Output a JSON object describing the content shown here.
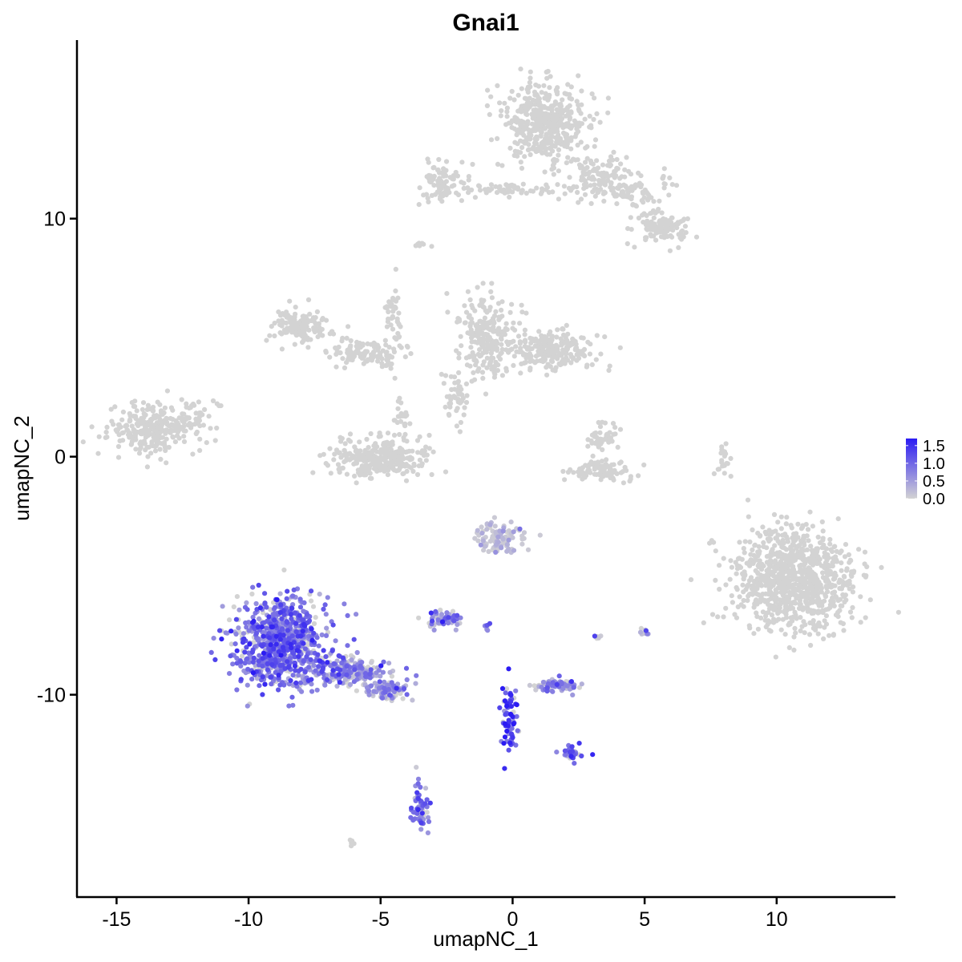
{
  "chart_data": {
    "type": "scatter",
    "title": "Gnai1",
    "xlabel": "umapNC_1",
    "ylabel": "umapNC_2",
    "xlim": [
      -16.5,
      14.5
    ],
    "ylim": [
      -18.5,
      17.5
    ],
    "x_ticks": [
      -15,
      -10,
      -5,
      0,
      5,
      10
    ],
    "x_tick_labels": [
      "-15",
      "-10",
      "-5",
      "0",
      "5",
      "10"
    ],
    "y_ticks": [
      -10,
      0,
      10
    ],
    "y_tick_labels": [
      "-10",
      "0",
      "10"
    ],
    "grid": false,
    "legend": {
      "placement": "right",
      "range": [
        0,
        1.7
      ],
      "ticks": [
        0.0,
        0.5,
        1.0,
        1.5
      ],
      "tick_labels": [
        "0.0",
        "0.5",
        "1.0",
        "1.5"
      ],
      "low_color": "#d3d3d3",
      "high_color": "#2b1bf3"
    },
    "colors": {
      "low": "#d3d3d3",
      "high": "#2b1bf3"
    },
    "clusters": [
      {
        "cx": 1.2,
        "cy": 14.0,
        "rx": 1.5,
        "ry": 1.5,
        "n": 450,
        "expr": 0
      },
      {
        "cx": 3.2,
        "cy": 11.8,
        "rx": 1.0,
        "ry": 0.8,
        "n": 110,
        "expr": 0
      },
      {
        "cx": 5.6,
        "cy": 9.6,
        "rx": 1.0,
        "ry": 0.6,
        "n": 110,
        "expr": 0
      },
      {
        "cx": -2.6,
        "cy": 11.5,
        "rx": 0.8,
        "ry": 0.7,
        "n": 90,
        "expr": 0
      },
      {
        "cx": -0.3,
        "cy": 11.2,
        "rx": 1.6,
        "ry": 0.3,
        "n": 60,
        "expr": 0
      },
      {
        "cx": 4.5,
        "cy": 11.2,
        "rx": 1.5,
        "ry": 0.8,
        "n": 90,
        "expr": 0
      },
      {
        "cx": -8.0,
        "cy": 5.5,
        "rx": 1.0,
        "ry": 0.7,
        "n": 130,
        "expr": 0
      },
      {
        "cx": -5.5,
        "cy": 4.3,
        "rx": 1.3,
        "ry": 0.5,
        "n": 120,
        "expr": 0
      },
      {
        "cx": -4.5,
        "cy": 6.0,
        "rx": 0.3,
        "ry": 1.2,
        "n": 40,
        "expr": 0
      },
      {
        "cx": -5.0,
        "cy": -0.1,
        "rx": 1.7,
        "ry": 0.8,
        "n": 300,
        "expr": 0
      },
      {
        "cx": -4.2,
        "cy": 1.5,
        "rx": 0.3,
        "ry": 1.0,
        "n": 25,
        "expr": 0
      },
      {
        "cx": -1.0,
        "cy": 5.0,
        "rx": 1.0,
        "ry": 1.5,
        "n": 240,
        "expr": 0
      },
      {
        "cx": 1.5,
        "cy": 4.5,
        "rx": 1.5,
        "ry": 0.8,
        "n": 230,
        "expr": 0
      },
      {
        "cx": -2.1,
        "cy": 2.5,
        "rx": 0.4,
        "ry": 1.0,
        "n": 50,
        "expr": 0
      },
      {
        "cx": -13.6,
        "cy": 1.1,
        "rx": 1.4,
        "ry": 0.9,
        "n": 260,
        "expr": 0
      },
      {
        "cx": -11.9,
        "cy": 1.6,
        "rx": 0.7,
        "ry": 0.8,
        "n": 40,
        "expr": 0
      },
      {
        "cx": 3.3,
        "cy": -0.6,
        "rx": 1.1,
        "ry": 0.4,
        "n": 100,
        "expr": 0
      },
      {
        "cx": 3.4,
        "cy": 0.8,
        "rx": 0.5,
        "ry": 0.6,
        "n": 45,
        "expr": 0
      },
      {
        "cx": 10.7,
        "cy": -5.2,
        "rx": 2.1,
        "ry": 1.9,
        "n": 900,
        "expr": 0
      },
      {
        "cx": -0.5,
        "cy": -3.4,
        "rx": 0.9,
        "ry": 0.6,
        "n": 100,
        "expr": 0.05
      },
      {
        "cx": -8.8,
        "cy": -7.8,
        "rx": 1.5,
        "ry": 1.8,
        "n": 800,
        "expr": 0.55
      },
      {
        "cx": -6.2,
        "cy": -9.0,
        "rx": 1.4,
        "ry": 0.55,
        "n": 220,
        "expr": 0.35
      },
      {
        "cx": -4.7,
        "cy": -9.8,
        "rx": 0.7,
        "ry": 0.4,
        "n": 90,
        "expr": 0.3
      },
      {
        "cx": -2.6,
        "cy": -6.8,
        "rx": 0.6,
        "ry": 0.3,
        "n": 60,
        "expr": 0.45
      },
      {
        "cx": 1.7,
        "cy": -9.6,
        "rx": 0.8,
        "ry": 0.25,
        "n": 80,
        "expr": 0.35
      },
      {
        "cx": -0.1,
        "cy": -11.0,
        "rx": 0.3,
        "ry": 1.3,
        "n": 70,
        "expr": 0.75
      },
      {
        "cx": 2.2,
        "cy": -12.5,
        "rx": 0.4,
        "ry": 0.3,
        "n": 30,
        "expr": 0.6
      },
      {
        "cx": -3.5,
        "cy": -14.8,
        "rx": 0.3,
        "ry": 0.8,
        "n": 60,
        "expr": 0.5
      },
      {
        "cx": 5.0,
        "cy": -7.4,
        "rx": 0.2,
        "ry": 0.3,
        "n": 10,
        "expr": 0.25
      },
      {
        "cx": 3.2,
        "cy": -7.7,
        "rx": 0.2,
        "ry": 0.2,
        "n": 6,
        "expr": 0.3
      },
      {
        "cx": -1.0,
        "cy": -7.2,
        "rx": 0.2,
        "ry": 0.2,
        "n": 6,
        "expr": 0.5
      },
      {
        "cx": 8.0,
        "cy": -0.2,
        "rx": 0.2,
        "ry": 0.8,
        "n": 20,
        "expr": 0
      },
      {
        "cx": -3.4,
        "cy": 8.9,
        "rx": 0.3,
        "ry": 0.15,
        "n": 8,
        "expr": 0
      },
      {
        "cx": -6.0,
        "cy": -16.2,
        "rx": 0.2,
        "ry": 0.15,
        "n": 6,
        "expr": 0
      }
    ]
  }
}
